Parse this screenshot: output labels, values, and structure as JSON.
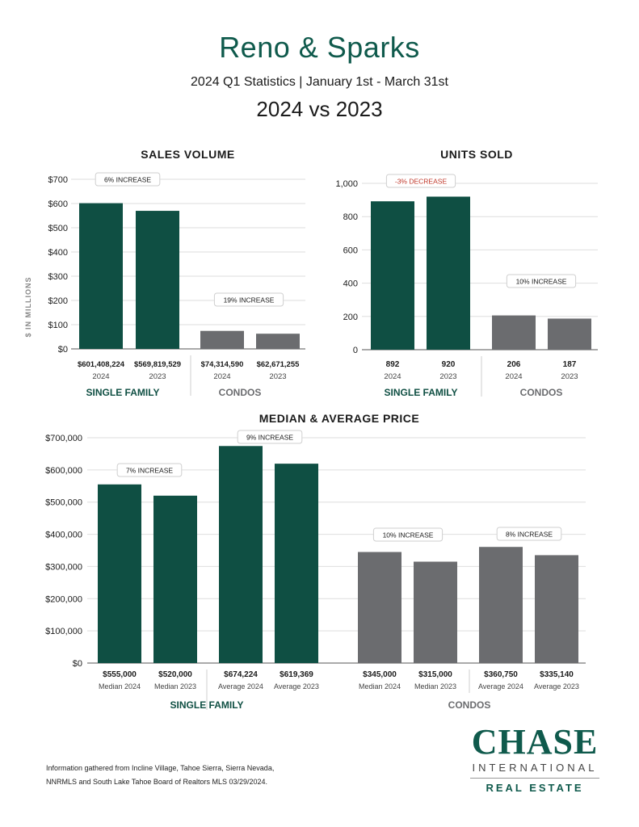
{
  "header": {
    "title": "Reno & Sparks",
    "subtitle": "2024 Q1 Statistics  |  January 1st - March 31st",
    "comparison": "2024 vs 2023"
  },
  "colors": {
    "single_family": "#0f4f43",
    "condos": "#6b6c6f",
    "decrease": "#c0392b"
  },
  "chart_data": [
    {
      "type": "bar",
      "title": "SALES VOLUME",
      "ylabel": "$ IN MILLIONS",
      "ylim": [
        0,
        700
      ],
      "yticks": [
        "$0",
        "$100",
        "$200",
        "$300",
        "$400",
        "$500",
        "$600",
        "$700"
      ],
      "groups": [
        {
          "name": "SINGLE FAMILY",
          "change": "6% INCREASE",
          "bars": [
            {
              "label": "$601,408,224",
              "sub": "2024",
              "value": 601.4
            },
            {
              "label": "$569,819,529",
              "sub": "2023",
              "value": 569.8
            }
          ]
        },
        {
          "name": "CONDOS",
          "change": "19% INCREASE",
          "bars": [
            {
              "label": "$74,314,590",
              "sub": "2024",
              "value": 74.3
            },
            {
              "label": "$62,671,255",
              "sub": "2023",
              "value": 62.7
            }
          ]
        }
      ]
    },
    {
      "type": "bar",
      "title": "UNITS SOLD",
      "ylabel": "",
      "ylim": [
        0,
        1000
      ],
      "yticks": [
        "0",
        "200",
        "400",
        "600",
        "800",
        "1,000"
      ],
      "groups": [
        {
          "name": "SINGLE FAMILY",
          "change": "-3% DECREASE",
          "bars": [
            {
              "label": "892",
              "sub": "2024",
              "value": 892
            },
            {
              "label": "920",
              "sub": "2023",
              "value": 920
            }
          ]
        },
        {
          "name": "CONDOS",
          "change": "10% INCREASE",
          "bars": [
            {
              "label": "206",
              "sub": "2024",
              "value": 206
            },
            {
              "label": "187",
              "sub": "2023",
              "value": 187
            }
          ]
        }
      ]
    },
    {
      "type": "bar",
      "title": "MEDIAN & AVERAGE PRICE",
      "ylabel": "",
      "ylim": [
        0,
        700000
      ],
      "yticks": [
        "$0",
        "$100,000",
        "$200,000",
        "$300,000",
        "$400,000",
        "$500,000",
        "$600,000",
        "$700,000"
      ],
      "groups": [
        {
          "name": "SINGLE FAMILY",
          "changes": [
            "7% INCREASE",
            "9% INCREASE"
          ],
          "bars": [
            {
              "label": "$555,000",
              "sub": "Median 2024",
              "value": 555000
            },
            {
              "label": "$520,000",
              "sub": "Median 2023",
              "value": 520000
            },
            {
              "label": "$674,224",
              "sub": "Average 2024",
              "value": 674224
            },
            {
              "label": "$619,369",
              "sub": "Average 2023",
              "value": 619369
            }
          ]
        },
        {
          "name": "CONDOS",
          "changes": [
            "10% INCREASE",
            "8% INCREASE"
          ],
          "bars": [
            {
              "label": "$345,000",
              "sub": "Median 2024",
              "value": 345000
            },
            {
              "label": "$315,000",
              "sub": "Median 2023",
              "value": 315000
            },
            {
              "label": "$360,750",
              "sub": "Average 2024",
              "value": 360750
            },
            {
              "label": "$335,140",
              "sub": "Average 2023",
              "value": 335140
            }
          ]
        }
      ]
    }
  ],
  "footer": {
    "note_line1": "Information gathered from Incline Village, Tahoe Sierra, Sierra Nevada,",
    "note_line2": "NNRMLS and South Lake Tahoe Board of Realtors MLS 03/29/2024."
  },
  "logo": {
    "main": "CHASE",
    "sub": "INTERNATIONAL",
    "tag": "REAL ESTATE"
  }
}
